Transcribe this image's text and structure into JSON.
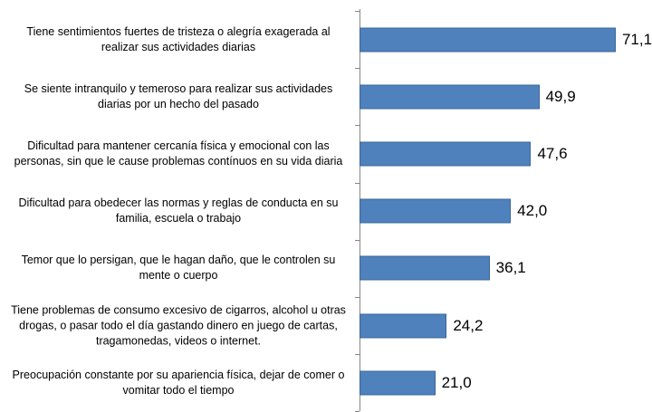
{
  "chart_data": {
    "type": "bar",
    "orientation": "horizontal",
    "categories": [
      "Tiene sentimientos fuertes de tristeza o alegría exagerada al realizar sus actividades diarias",
      "Se siente intranquilo y temeroso para realizar sus actividades diarias por un hecho del pasado",
      "Dificultad para mantener cercanía física y emocional con las personas, sin que le cause problemas contínuos en su vida diaria",
      "Dificultad para obedecer las normas y reglas de conducta en su familia, escuela o trabajo",
      "Temor que lo persigan, que le hagan daño, que le controlen su mente o cuerpo",
      "Tiene problemas de consumo excesivo de cigarros, alcohol u otras drogas, o pasar todo el día gastando dinero en juego de cartas, tragamonedas, videos o internet.",
      "Preocupación constante por su apariencia física, dejar de comer o vomitar todo el tiempo"
    ],
    "values": [
      71.1,
      49.9,
      47.6,
      42.0,
      36.1,
      24.2,
      21.0
    ],
    "value_labels": [
      "71,1",
      "49,9",
      "47,6",
      "42,0",
      "36,1",
      "24,2",
      "21,0"
    ],
    "color": "#4f81bd"
  }
}
